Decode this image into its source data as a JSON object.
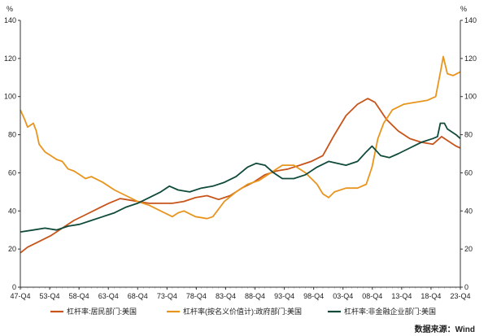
{
  "chart_data": {
    "type": "line",
    "title": "",
    "xlabel": "",
    "ylabel_left": "%",
    "ylabel_right": "%",
    "ylim": [
      0,
      140
    ],
    "yticks": [
      0,
      20,
      40,
      60,
      80,
      100,
      120,
      140
    ],
    "grid": false,
    "legend_position": "bottom",
    "source": "数据来源：Wind",
    "x_ticks": [
      "47-Q4",
      "53-Q4",
      "58-Q4",
      "63-Q4",
      "68-Q4",
      "73-Q4",
      "78-Q4",
      "83-Q4",
      "88-Q4",
      "93-Q4",
      "98-Q4",
      "03-Q4",
      "08-Q4",
      "13-Q4",
      "18-Q4",
      "23-Q4"
    ],
    "x_range": [
      1947.75,
      2023.75
    ],
    "series": [
      {
        "name": "杠杆率:居民部门:美国",
        "color": "#c8541a",
        "points": [
          [
            1947.75,
            18
          ],
          [
            1949,
            21
          ],
          [
            1951,
            24
          ],
          [
            1953,
            27
          ],
          [
            1955,
            31
          ],
          [
            1957,
            35
          ],
          [
            1959,
            38
          ],
          [
            1961,
            41
          ],
          [
            1963,
            44
          ],
          [
            1965,
            46.5
          ],
          [
            1966,
            46
          ],
          [
            1968,
            45
          ],
          [
            1970,
            44
          ],
          [
            1972,
            44
          ],
          [
            1974,
            44
          ],
          [
            1976,
            45
          ],
          [
            1978,
            47
          ],
          [
            1980,
            48
          ],
          [
            1982,
            46
          ],
          [
            1984,
            48
          ],
          [
            1986,
            52
          ],
          [
            1988,
            55
          ],
          [
            1990,
            59
          ],
          [
            1992,
            61
          ],
          [
            1994,
            62
          ],
          [
            1996,
            64
          ],
          [
            1998,
            66
          ],
          [
            2000,
            69
          ],
          [
            2002,
            80
          ],
          [
            2004,
            90
          ],
          [
            2006,
            96
          ],
          [
            2007.75,
            99
          ],
          [
            2009,
            97
          ],
          [
            2011,
            88
          ],
          [
            2013,
            82
          ],
          [
            2015,
            78
          ],
          [
            2017,
            76
          ],
          [
            2019,
            75
          ],
          [
            2020.5,
            79
          ],
          [
            2021.5,
            77
          ],
          [
            2023,
            74
          ],
          [
            2023.75,
            73
          ]
        ]
      },
      {
        "name": "杠杆率(按名义价值计):政府部门:美国",
        "color": "#e8951e",
        "points": [
          [
            1947.75,
            93
          ],
          [
            1948.5,
            88
          ],
          [
            1949,
            84
          ],
          [
            1950,
            86
          ],
          [
            1950.5,
            82
          ],
          [
            1951,
            75
          ],
          [
            1952,
            71
          ],
          [
            1953,
            69
          ],
          [
            1954,
            67
          ],
          [
            1955,
            66
          ],
          [
            1956,
            62
          ],
          [
            1957,
            61
          ],
          [
            1958,
            59
          ],
          [
            1959,
            57
          ],
          [
            1960,
            58
          ],
          [
            1962,
            55
          ],
          [
            1964,
            51
          ],
          [
            1966,
            48
          ],
          [
            1968,
            45
          ],
          [
            1970,
            43
          ],
          [
            1972,
            40
          ],
          [
            1974,
            37
          ],
          [
            1975,
            39
          ],
          [
            1976,
            40
          ],
          [
            1978,
            37
          ],
          [
            1980,
            36
          ],
          [
            1981,
            37
          ],
          [
            1983,
            45
          ],
          [
            1985,
            50
          ],
          [
            1987,
            54
          ],
          [
            1989,
            56
          ],
          [
            1991,
            60
          ],
          [
            1993,
            64
          ],
          [
            1995,
            64
          ],
          [
            1997,
            60
          ],
          [
            1999,
            54
          ],
          [
            2000,
            49
          ],
          [
            2001,
            47
          ],
          [
            2002,
            50
          ],
          [
            2004,
            52
          ],
          [
            2006,
            52
          ],
          [
            2007.5,
            54
          ],
          [
            2008.5,
            63
          ],
          [
            2009.5,
            78
          ],
          [
            2010.5,
            86
          ],
          [
            2012,
            93
          ],
          [
            2014,
            96
          ],
          [
            2016,
            97
          ],
          [
            2018,
            98
          ],
          [
            2019.5,
            100
          ],
          [
            2020,
            108
          ],
          [
            2020.5,
            116
          ],
          [
            2020.8,
            121
          ],
          [
            2021.5,
            112
          ],
          [
            2022.5,
            111
          ],
          [
            2023.75,
            113
          ]
        ]
      },
      {
        "name": "杠杆率:非金融企业部门:美国",
        "color": "#0f4a3a",
        "points": [
          [
            1947.75,
            29
          ],
          [
            1950,
            30
          ],
          [
            1952,
            31
          ],
          [
            1954,
            30
          ],
          [
            1956,
            32
          ],
          [
            1958,
            33
          ],
          [
            1960,
            35
          ],
          [
            1962,
            37
          ],
          [
            1964,
            39
          ],
          [
            1966,
            42
          ],
          [
            1968,
            44
          ],
          [
            1970,
            47
          ],
          [
            1972,
            50
          ],
          [
            1973.5,
            53
          ],
          [
            1975,
            51
          ],
          [
            1977,
            50
          ],
          [
            1979,
            52
          ],
          [
            1981,
            53
          ],
          [
            1983,
            55
          ],
          [
            1985,
            58
          ],
          [
            1987,
            63
          ],
          [
            1988.5,
            65
          ],
          [
            1990,
            64
          ],
          [
            1991.5,
            60
          ],
          [
            1993,
            57
          ],
          [
            1995,
            57
          ],
          [
            1997,
            59
          ],
          [
            1999,
            63
          ],
          [
            2001,
            66
          ],
          [
            2002.5,
            65
          ],
          [
            2004,
            64
          ],
          [
            2006,
            66
          ],
          [
            2007.5,
            71
          ],
          [
            2008.5,
            74
          ],
          [
            2010,
            69
          ],
          [
            2011.5,
            68
          ],
          [
            2013,
            70
          ],
          [
            2015,
            73
          ],
          [
            2017,
            76
          ],
          [
            2019,
            78
          ],
          [
            2019.8,
            79
          ],
          [
            2020.3,
            86
          ],
          [
            2021,
            86
          ],
          [
            2021.5,
            83
          ],
          [
            2023,
            80
          ],
          [
            2023.75,
            78
          ]
        ]
      }
    ]
  }
}
